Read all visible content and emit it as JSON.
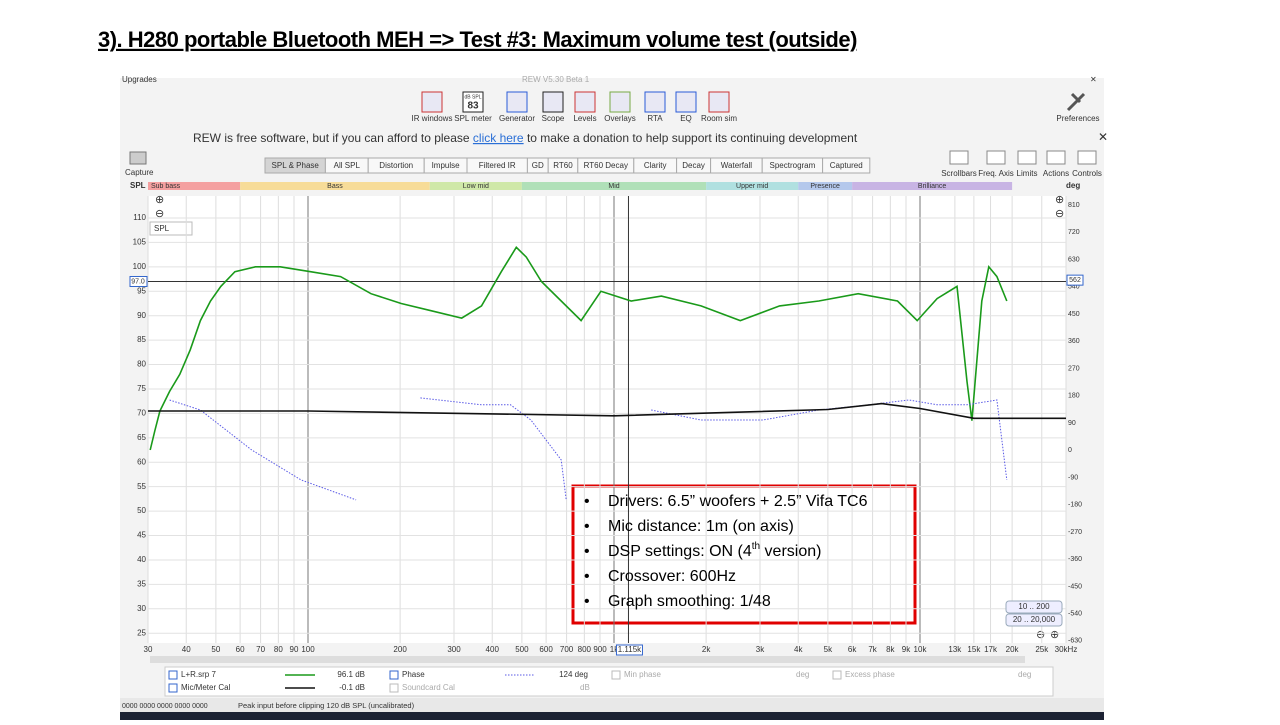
{
  "title": "3). H280 portable Bluetooth MEH => Test #3: Maximum volume test (outside)",
  "window": {
    "menu": "Upgrades",
    "caption": "REW V5.30 Beta 1"
  },
  "toolbar": [
    "IR windows",
    "SPL meter",
    "Generator",
    "Scope",
    "Levels",
    "Overlays",
    "RTA",
    "EQ",
    "Room sim"
  ],
  "spl_icon": {
    "unit": "dB SPL",
    "reading": "83"
  },
  "preferences": "Preferences",
  "donation": {
    "before": "REW is free software, but if you can afford to please ",
    "link": "click here",
    "after": " to make a donation to help support its continuing development"
  },
  "capture": "Capture",
  "tabs": [
    "SPL & Phase",
    "All SPL",
    "Distortion",
    "Impulse",
    "Filtered IR",
    "GD",
    "RT60",
    "RT60 Decay",
    "Clarity",
    "Decay",
    "Waterfall",
    "Spectrogram",
    "Captured"
  ],
  "right_tools": [
    "Scrollbars",
    "Freq. Axis",
    "Limits",
    "Actions",
    "Controls"
  ],
  "range_buttons": [
    "10 .. 200",
    "20 .. 20,000"
  ],
  "legend": {
    "min_phase": "Min phase",
    "excess_phase": "Excess phase",
    "soundcard": "Soundcard Cal",
    "deg": "deg",
    "db": "dB",
    "rows": [
      {
        "value": "96.1 dB",
        "phase": "Phase",
        "phase_value": "124 deg"
      },
      {
        "value": "-0.1 dB"
      }
    ]
  },
  "status": "Peak input before clipping 120 dB SPL (uncalibrated)",
  "bullets": [
    {
      "text": "Drivers: 6.5”  woofers + 2.5” Vifa TC6"
    },
    {
      "text": "Mic distance: 1m (on axis)"
    },
    {
      "text": "DSP settings: ON (4",
      "sup": "th",
      "after": "  version)"
    },
    {
      "text": "Crossover: 600Hz"
    },
    {
      "text": "Graph smoothing: 1/48"
    }
  ],
  "chart_data": {
    "type": "line",
    "x_scale": "log",
    "ylabel": "SPL",
    "y2label": "deg",
    "selector": "SPL",
    "xlim": [
      30,
      30000
    ],
    "xticks": [
      30,
      40,
      50,
      60,
      70,
      80,
      90,
      100,
      200,
      300,
      400,
      500,
      600,
      700,
      800,
      900,
      {
        "value": 1000,
        "label": "1k"
      },
      {
        "value": 2000,
        "label": "2k"
      },
      {
        "value": 3000,
        "label": "3k"
      },
      {
        "value": 4000,
        "label": "4k"
      },
      {
        "value": 5000,
        "label": "5k"
      },
      {
        "value": 6000,
        "label": "6k"
      },
      {
        "value": 7000,
        "label": "7k"
      },
      {
        "value": 8000,
        "label": "8k"
      },
      {
        "value": 9000,
        "label": "9k"
      },
      {
        "value": 10000,
        "label": "10k"
      },
      {
        "value": 13000,
        "label": "13k"
      },
      {
        "value": 15000,
        "label": "15k"
      },
      {
        "value": 17000,
        "label": "17k"
      },
      {
        "value": 20000,
        "label": "20k"
      },
      {
        "value": 25000,
        "label": "25k"
      },
      {
        "value": 30000,
        "label": "30kHz"
      }
    ],
    "ylim": [
      23,
      114.5
    ],
    "yticks": [
      25,
      30,
      35,
      40,
      45,
      50,
      55,
      60,
      65,
      70,
      75,
      80,
      85,
      90,
      95,
      100,
      105,
      110
    ],
    "y2lim": [
      -637,
      840
    ],
    "y2ticks": [
      -630,
      -540,
      -450,
      -360,
      -270,
      -180,
      -90,
      0,
      90,
      180,
      270,
      360,
      450,
      540,
      630,
      720,
      810
    ],
    "grid": true,
    "reference": {
      "y": {
        "value": 97,
        "label": "97.0"
      },
      "y2": 562
    },
    "cursor": {
      "value": 1115,
      "label": "1.115k"
    },
    "bands": {
      "names": [
        "Sub bass",
        "Bass",
        "Low mid",
        "Mid",
        "Upper mid",
        "Presence",
        "Brilliance"
      ],
      "colors": [
        "#f4a0a0",
        "#f7dc98",
        "#cfe8a8",
        "#b0e0b8",
        "#b0e0e0",
        "#b4c8ec",
        "#c8b4e4"
      ],
      "edges": [
        30,
        60,
        250,
        500,
        2000,
        4000,
        6000,
        20000
      ]
    },
    "series": [
      {
        "name": "L+R.srp 7",
        "color": "#1a9a1a",
        "style": "solid",
        "x": [
          30.5,
          31.6,
          32.8,
          35.3,
          38.1,
          41.2,
          44.5,
          48,
          51.9,
          57.7,
          67.3,
          81.1,
          101.9,
          127.8,
          160.6,
          201.7,
          253.3,
          317.9,
          368.9,
          428.3,
          479.6,
          517,
          579.2,
          672.3,
          780.7,
          906.3,
          1138,
          1429,
          1924,
          2587,
          3476,
          4670,
          6280,
          8440,
          9790,
          11370,
          13210,
          14240,
          14780,
          15920,
          16780,
          17830,
          19210
        ],
        "values": [
          62.5,
          66.5,
          70.5,
          74.5,
          78,
          83,
          89,
          93,
          96,
          99,
          100,
          100,
          99,
          98,
          94.5,
          92.5,
          91,
          89.5,
          92,
          99,
          104,
          102,
          97,
          93,
          89,
          95,
          93,
          94,
          92,
          89,
          92,
          93,
          94.5,
          93,
          89,
          93.5,
          96,
          76.5,
          68.5,
          93,
          100,
          98,
          93
        ]
      },
      {
        "name": "Phase",
        "color": "#5a5ae6",
        "style": "dotted",
        "axis": "y2",
        "x": [
          35.3,
          44.5,
          65.4,
          94.9,
          143.6,
          145.6,
          233,
          369,
          459,
          535,
          672,
          698,
          906,
          1323,
          1924,
          3070,
          4670,
          6820,
          9190,
          11370,
          14240,
          17830,
          19210
        ],
        "values": [
          166,
          133,
          1,
          -98,
          -164,
          null,
          173,
          150,
          150,
          100,
          -32,
          -164,
          null,
          133,
          100,
          100,
          133,
          150,
          166,
          150,
          150,
          166,
          -98
        ]
      },
      {
        "name": "Mic/Meter Cal",
        "color": "#111111",
        "style": "solid",
        "x": [
          30,
          100,
          1000,
          5000,
          7500,
          10000,
          15000,
          30000
        ],
        "values": [
          70.5,
          70.5,
          69.5,
          70.8,
          72,
          71,
          69,
          69
        ]
      }
    ]
  }
}
